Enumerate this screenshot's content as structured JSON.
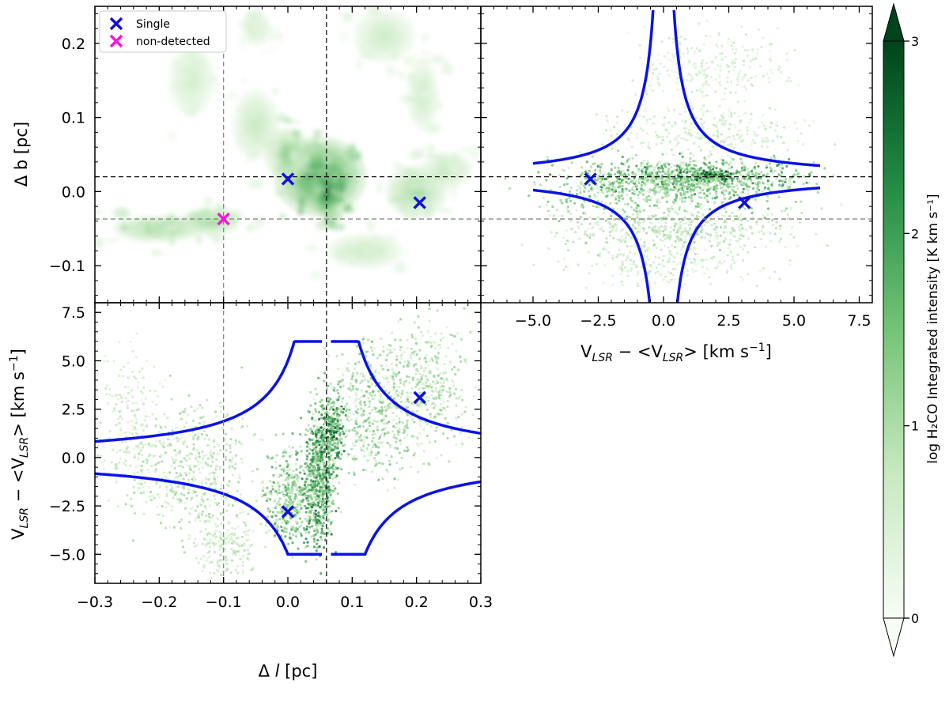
{
  "colors": {
    "curve": "#0a12e8",
    "marker_single": "#1010d8",
    "marker_nondetected": "#ff10e0",
    "cmap": [
      "#f7fcf5",
      "#c7e9c0",
      "#74c476",
      "#238b45",
      "#00441b"
    ],
    "dashed_main": "#111111",
    "dashed_secondary": "#888888"
  },
  "chart_data": {
    "type": "scatter",
    "title": "",
    "reference_lines": {
      "l_main": 0.06,
      "b_main": 0.02,
      "l_secondary": -0.1,
      "b_secondary": -0.037
    },
    "legend": {
      "position": "top-left",
      "entries": [
        {
          "label": "Single",
          "marker": "x",
          "color": "#1010d8"
        },
        {
          "label": "non-detected",
          "marker": "x",
          "color": "#ff10e0"
        }
      ]
    },
    "markers": {
      "single": [
        {
          "l": 0.0,
          "b": 0.017,
          "v": -2.8
        },
        {
          "l": 0.205,
          "b": -0.015,
          "v": 3.1
        }
      ],
      "non_detected": [
        {
          "l": -0.1,
          "b": -0.037
        }
      ]
    },
    "panels": [
      {
        "name": "map",
        "type": "heatmap",
        "xlabel": "",
        "ylabel": "Δ b [pc]",
        "xlim": [
          -0.3,
          0.3
        ],
        "ylim": [
          -0.15,
          0.25
        ],
        "yticks": [
          -0.1,
          0.0,
          0.1,
          0.2
        ],
        "ytick_labels": [
          "−0.1",
          "0.0",
          "0.1",
          "0.2"
        ],
        "blobs": [
          {
            "l": 0.05,
            "b": 0.02,
            "sl": 0.06,
            "sb": 0.045,
            "w": 2.6
          },
          {
            "l": 0.06,
            "b": 0.0,
            "sl": 0.02,
            "sb": 0.03,
            "w": 3.0
          },
          {
            "l": 0.0,
            "b": 0.05,
            "sl": 0.03,
            "sb": 0.03,
            "w": 1.6
          },
          {
            "l": -0.2,
            "b": -0.05,
            "sl": 0.06,
            "sb": 0.015,
            "w": 1.5
          },
          {
            "l": -0.12,
            "b": -0.04,
            "sl": 0.04,
            "sb": 0.015,
            "w": 1.4
          },
          {
            "l": -0.05,
            "b": 0.09,
            "sl": 0.03,
            "sb": 0.04,
            "w": 0.9
          },
          {
            "l": 0.2,
            "b": 0.0,
            "sl": 0.04,
            "sb": 0.03,
            "w": 1.3
          },
          {
            "l": 0.25,
            "b": 0.03,
            "sl": 0.03,
            "sb": 0.02,
            "w": 1.0
          },
          {
            "l": 0.12,
            "b": -0.08,
            "sl": 0.05,
            "sb": 0.02,
            "w": 0.8
          },
          {
            "l": 0.15,
            "b": 0.21,
            "sl": 0.04,
            "sb": 0.03,
            "w": 0.8
          },
          {
            "l": -0.05,
            "b": 0.22,
            "sl": 0.02,
            "sb": 0.02,
            "w": 0.7
          },
          {
            "l": 0.21,
            "b": 0.13,
            "sl": 0.02,
            "sb": 0.04,
            "w": 0.8
          },
          {
            "l": -0.15,
            "b": 0.15,
            "sl": 0.03,
            "sb": 0.04,
            "w": 0.7
          }
        ]
      },
      {
        "name": "b-v",
        "type": "scatter",
        "xlabel": "VLSR − <VLSR> [km s⁻¹]",
        "ylabel": "",
        "xlim": [
          -7.0,
          8.0
        ],
        "ylim": [
          -0.15,
          0.25
        ],
        "xticks": [
          -5.0,
          -2.5,
          0.0,
          2.5,
          5.0,
          7.5
        ],
        "xtick_labels": [
          "−5.0",
          "−2.5",
          "0.0",
          "2.5",
          "5.0",
          "7.5"
        ],
        "curve": "v = ±0.09 / |Δb − 0.02|"
      },
      {
        "name": "l-v",
        "type": "scatter",
        "xlabel": "Δ l [pc]",
        "ylabel": "VLSR − <VLSR> [km s⁻¹]",
        "xlim": [
          -0.3,
          0.3
        ],
        "ylim": [
          -6.5,
          8.0
        ],
        "xticks": [
          -0.3,
          -0.2,
          -0.1,
          0.0,
          0.1,
          0.2,
          0.3
        ],
        "xtick_labels": [
          "−0.3",
          "−0.2",
          "−0.1",
          "0.0",
          "0.1",
          "0.2",
          "0.3"
        ],
        "yticks": [
          -5.0,
          -2.5,
          0.0,
          2.5,
          5.0,
          7.5
        ],
        "ytick_labels": [
          "−5.0",
          "−2.5",
          "0.0",
          "2.5",
          "5.0",
          "7.5"
        ],
        "curve": "v = ±0.3 / |Δl − 0.06|"
      }
    ],
    "colorbar": {
      "label": "log H₂CO Integrated intensity [K km s⁻¹]",
      "range": [
        0,
        3
      ],
      "ticks": [
        0,
        1,
        2,
        3
      ],
      "tick_labels": [
        "0",
        "1",
        "2",
        "3"
      ],
      "extend": "both"
    }
  }
}
